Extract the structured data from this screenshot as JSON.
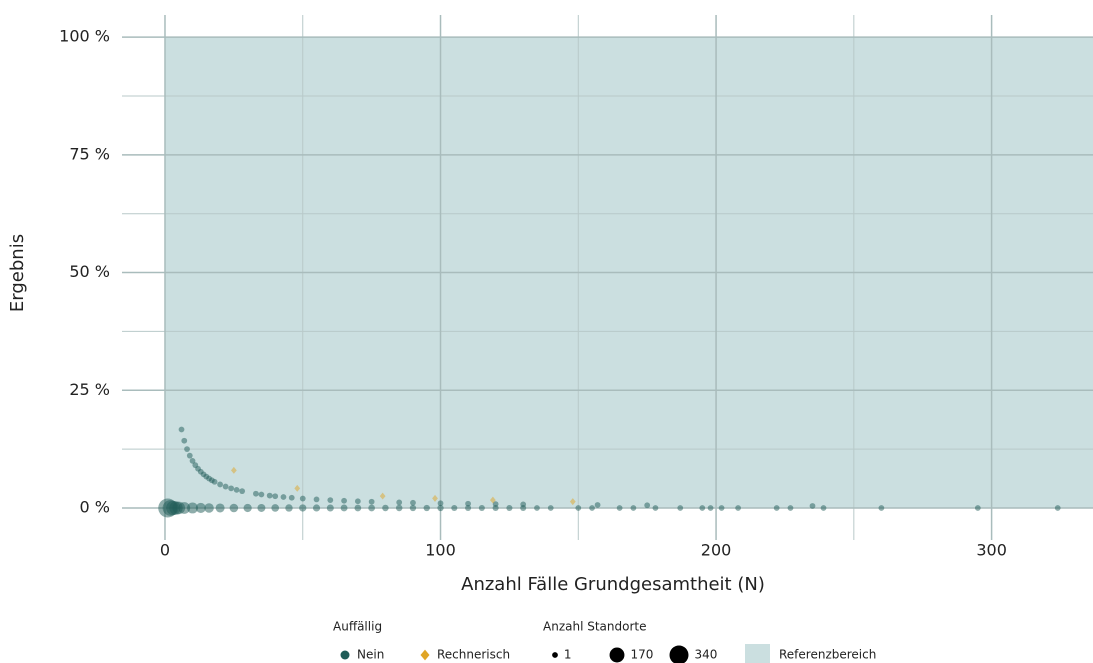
{
  "chart_data": {
    "type": "scatter",
    "xlabel": "Anzahl Fälle Grundgesamtheit (N)",
    "ylabel": "Ergebnis",
    "xlim": [
      -15.6,
      336.8
    ],
    "ylim": [
      -6.8,
      104.7
    ],
    "xticks": [
      0,
      100,
      200,
      300
    ],
    "xminor": [
      50,
      150,
      250
    ],
    "yticks": [
      {
        "value": 0,
        "label": "0 %"
      },
      {
        "value": 25,
        "label": "25 %"
      },
      {
        "value": 50,
        "label": "50 %"
      },
      {
        "value": 75,
        "label": "75 %"
      },
      {
        "value": 100,
        "label": "100 %"
      }
    ],
    "yminor": [
      12.5,
      37.5,
      62.5,
      87.5
    ],
    "grid": true,
    "reference": {
      "name": "Referenzbereich",
      "x0": 0,
      "ylim": [
        0,
        100
      ],
      "color": "#cbdfe0"
    },
    "legend_title": "Auffällig",
    "size_legend": {
      "title": "Anzahl Standorte",
      "values": [
        1,
        170,
        340
      ]
    },
    "series": [
      {
        "name": "Nein",
        "color": "#1f5c57",
        "marker": "circle",
        "x": [
          6,
          7,
          8,
          9,
          10,
          11,
          12,
          13,
          14,
          15,
          16,
          17,
          18,
          20,
          22,
          24,
          26,
          28,
          33,
          35,
          38,
          40,
          43,
          46,
          50,
          55,
          60,
          65,
          70,
          75,
          85,
          90,
          100,
          110,
          120,
          130,
          157,
          175,
          235,
          1,
          2,
          3,
          4,
          5,
          7,
          10,
          13,
          16,
          20,
          25,
          30,
          35,
          40,
          45,
          50,
          55,
          60,
          65,
          70,
          75,
          80,
          85,
          90,
          95,
          100,
          105,
          110,
          115,
          120,
          125,
          130,
          135,
          140,
          150,
          155,
          165,
          170,
          178,
          187,
          195,
          198,
          202,
          208,
          222,
          227,
          239,
          260,
          295,
          324
        ],
        "values": [
          16.67,
          14.29,
          12.5,
          11.11,
          10,
          9.09,
          8.33,
          7.69,
          7.14,
          6.67,
          6.25,
          5.88,
          5.56,
          5,
          4.55,
          4.17,
          3.85,
          3.57,
          3.03,
          2.86,
          2.63,
          2.5,
          2.33,
          2.17,
          2,
          1.82,
          1.67,
          1.54,
          1.43,
          1.33,
          1.18,
          1.11,
          1,
          0.91,
          0.83,
          0.77,
          0.64,
          0.57,
          0.43,
          0,
          0,
          0,
          0,
          0,
          0,
          0,
          0,
          0,
          0,
          0,
          0,
          0,
          0,
          0,
          0,
          0,
          0,
          0,
          0,
          0,
          0,
          0,
          0,
          0,
          0,
          0,
          0,
          0,
          0,
          0,
          0,
          0,
          0,
          0,
          0,
          0,
          0,
          0,
          0,
          0,
          0,
          0,
          0,
          0,
          0,
          0,
          0,
          0,
          0
        ],
        "sizes": [
          1,
          1,
          1,
          1,
          1,
          1,
          1,
          1,
          1,
          1,
          1,
          1,
          1,
          1,
          1,
          1,
          1,
          1,
          1,
          1,
          1,
          1,
          1,
          1,
          1,
          1,
          1,
          1,
          1,
          1,
          1,
          1,
          1,
          1,
          1,
          1,
          1,
          1,
          1,
          340,
          200,
          150,
          120,
          100,
          80,
          60,
          45,
          35,
          28,
          22,
          18,
          15,
          12,
          10,
          9,
          8,
          7,
          6,
          5,
          5,
          4,
          4,
          3,
          3,
          3,
          2,
          2,
          2,
          2,
          2,
          2,
          1,
          1,
          1,
          1,
          1,
          1,
          1,
          1,
          1,
          1,
          1,
          1,
          1,
          1,
          1,
          1,
          1,
          1
        ]
      },
      {
        "name": "Rechnerisch",
        "color": "#e0a526",
        "marker": "diamond",
        "x": [
          25,
          48,
          79,
          98,
          119,
          148
        ],
        "values": [
          8,
          4.17,
          2.53,
          2.04,
          1.68,
          1.35
        ],
        "sizes": [
          1,
          1,
          1,
          1,
          1,
          1
        ]
      }
    ]
  }
}
